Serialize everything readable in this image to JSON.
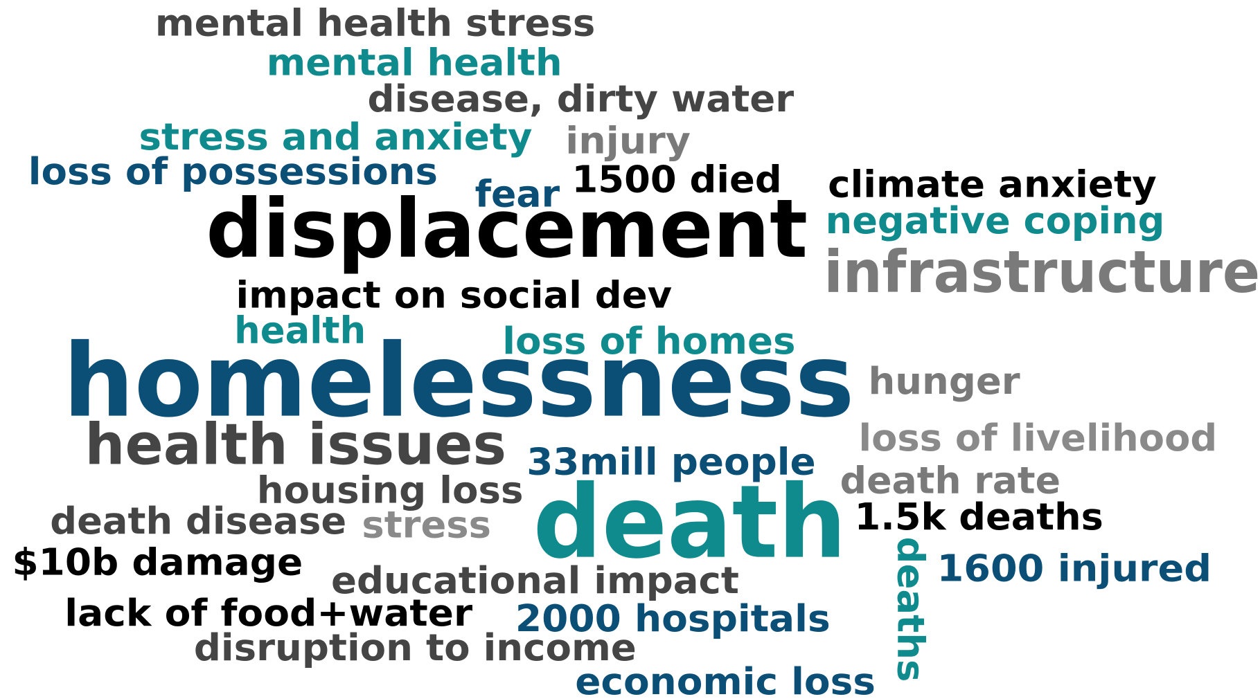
{
  "words": [
    {
      "text": "mental health stress",
      "color": "#454545"
    },
    {
      "text": "mental health",
      "color": "#0f8b8d"
    },
    {
      "text": "disease, dirty water",
      "color": "#454545"
    },
    {
      "text": "stress and anxiety",
      "color": "#0f8b8d"
    },
    {
      "text": "injury",
      "color": "#7a7a7a"
    },
    {
      "text": "loss of possessions",
      "color": "#0b4f77"
    },
    {
      "text": "fear",
      "color": "#0b4f77"
    },
    {
      "text": "1500 died",
      "color": "#000000"
    },
    {
      "text": "climate anxiety",
      "color": "#000000"
    },
    {
      "text": "displacement",
      "color": "#000000"
    },
    {
      "text": "negative coping",
      "color": "#0f8b8d"
    },
    {
      "text": "infrastructure",
      "color": "#7a7a7a"
    },
    {
      "text": "impact on social dev",
      "color": "#000000"
    },
    {
      "text": "health",
      "color": "#0f8b8d"
    },
    {
      "text": "loss of homes",
      "color": "#0f8b8d"
    },
    {
      "text": "homelessness",
      "color": "#0b4f77"
    },
    {
      "text": "hunger",
      "color": "#7a7a7a"
    },
    {
      "text": "health issues",
      "color": "#454545"
    },
    {
      "text": "loss of livelihood",
      "color": "#8a8a8a"
    },
    {
      "text": "33mill people",
      "color": "#0b4f77"
    },
    {
      "text": "death rate",
      "color": "#7a7a7a"
    },
    {
      "text": "housing loss",
      "color": "#454545"
    },
    {
      "text": "death",
      "color": "#0f8b8d"
    },
    {
      "text": "death disease",
      "color": "#454545"
    },
    {
      "text": "stress",
      "color": "#8a8a8a"
    },
    {
      "text": "1.5k deaths",
      "color": "#000000"
    },
    {
      "text": "$10b damage",
      "color": "#000000"
    },
    {
      "text": "educational impact",
      "color": "#454545"
    },
    {
      "text": "deaths",
      "color": "#0f8b8d"
    },
    {
      "text": "1600 injured",
      "color": "#0b4f77"
    },
    {
      "text": "lack of food+water",
      "color": "#000000"
    },
    {
      "text": "2000 hospitals",
      "color": "#0b4f77"
    },
    {
      "text": "disruption to income",
      "color": "#454545"
    },
    {
      "text": "economic loss",
      "color": "#0b4f77"
    }
  ]
}
